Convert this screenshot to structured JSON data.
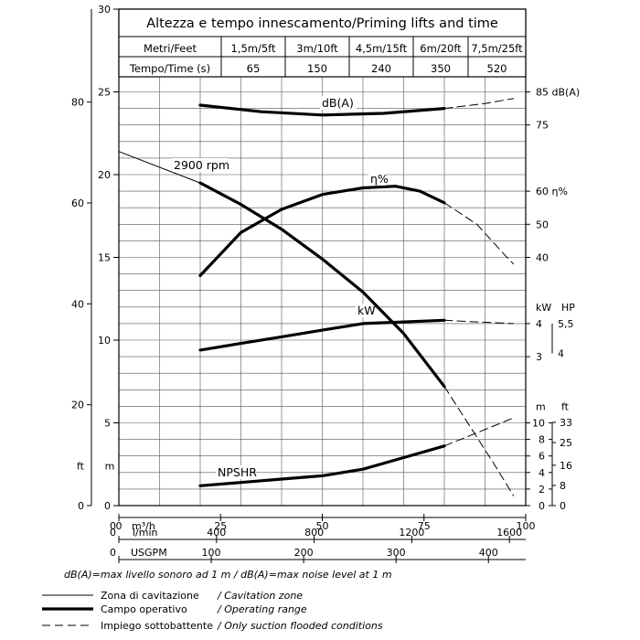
{
  "chart_data": {
    "type": "line",
    "title": "Altezza e tempo innescamento/Priming lifts and time",
    "priming_table": {
      "row1_label": "Metri/Feet",
      "row2_label": "Tempo/Time (s)",
      "lifts": [
        "1,5m/5ft",
        "3m/10ft",
        "4,5m/15ft",
        "6m/20ft",
        "7,5m/25ft"
      ],
      "times": [
        "65",
        "150",
        "240",
        "350",
        "520"
      ]
    },
    "x_axes": {
      "m3h": {
        "label": "m³/h",
        "ticks": [
          0,
          25,
          50,
          75,
          100
        ],
        "range": [
          0,
          100
        ]
      },
      "lmin": {
        "label": "l/min",
        "ticks": [
          0,
          400,
          800,
          1200,
          1600
        ]
      },
      "usgpm": {
        "label": "USGPM",
        "ticks": [
          0,
          100,
          200,
          300,
          400
        ]
      }
    },
    "y_axes": {
      "head_m": {
        "ticks": [
          0,
          5,
          10,
          15,
          20,
          25,
          30
        ],
        "range": [
          0,
          30
        ]
      },
      "head_ft": {
        "ticks": [
          0,
          20,
          40,
          60,
          80
        ]
      },
      "left_units": {
        "ft": "ft",
        "m": "m"
      },
      "dba": {
        "ticks": [
          "85 dB(A)",
          "75"
        ]
      },
      "eff": {
        "ticks": [
          "60 η%",
          "50",
          "40"
        ]
      },
      "kw": {
        "ticks": [
          "4",
          "3"
        ],
        "unit": "kW"
      },
      "hp": {
        "ticks": [
          "5,5",
          "4"
        ],
        "unit": "HP"
      },
      "npshr_m": {
        "ticks": [
          0,
          2,
          4,
          6,
          8,
          10
        ],
        "unit": "m"
      },
      "npshr_ft": {
        "ticks": [
          0,
          8,
          16,
          25,
          33
        ],
        "unit": "ft"
      }
    },
    "labels": {
      "rpm": "2900 rpm",
      "dba": "dB(A)",
      "eta": "η%",
      "kw": "kW",
      "npshr": "NPSHR"
    },
    "series": [
      {
        "name": "2900 rpm",
        "cavitation": [
          [
            0,
            21.4
          ],
          [
            20,
            19.5
          ]
        ],
        "operating": [
          [
            20,
            19.5
          ],
          [
            30,
            18.2
          ],
          [
            40,
            16.7
          ],
          [
            50,
            14.9
          ],
          [
            60,
            12.9
          ],
          [
            70,
            10.4
          ],
          [
            80,
            7.2
          ]
        ],
        "flooded": [
          [
            80,
            7.2
          ],
          [
            86,
            4.9
          ],
          [
            92,
            2.6
          ],
          [
            97,
            0.6
          ]
        ]
      },
      {
        "name": "dB(A)",
        "operating": [
          [
            20,
            24.2
          ],
          [
            35,
            23.8
          ],
          [
            50,
            23.6
          ],
          [
            65,
            23.7
          ],
          [
            80,
            24.0
          ]
        ],
        "flooded": [
          [
            80,
            24.0
          ],
          [
            90,
            24.3
          ],
          [
            97,
            24.6
          ]
        ]
      },
      {
        "name": "η%",
        "operating": [
          [
            20,
            13.9
          ],
          [
            30,
            16.5
          ],
          [
            40,
            17.9
          ],
          [
            50,
            18.8
          ],
          [
            60,
            19.2
          ],
          [
            68,
            19.3
          ],
          [
            74,
            19.0
          ],
          [
            80,
            18.3
          ]
        ],
        "flooded": [
          [
            80,
            18.3
          ],
          [
            88,
            17.0
          ],
          [
            95,
            15.1
          ],
          [
            97,
            14.6
          ]
        ]
      },
      {
        "name": "kW",
        "operating": [
          [
            20,
            9.4
          ],
          [
            30,
            9.8
          ],
          [
            40,
            10.2
          ],
          [
            50,
            10.6
          ],
          [
            60,
            11.0
          ],
          [
            70,
            11.1
          ],
          [
            80,
            11.2
          ]
        ],
        "flooded": [
          [
            80,
            11.2
          ],
          [
            88,
            11.1
          ],
          [
            97,
            11.0
          ]
        ]
      },
      {
        "name": "NPSHR",
        "operating": [
          [
            20,
            1.2
          ],
          [
            30,
            1.4
          ],
          [
            40,
            1.6
          ],
          [
            50,
            1.8
          ],
          [
            60,
            2.2
          ],
          [
            70,
            2.9
          ],
          [
            80,
            3.6
          ]
        ],
        "flooded": [
          [
            80,
            3.6
          ],
          [
            88,
            4.4
          ],
          [
            97,
            5.3
          ]
        ]
      }
    ],
    "grid": true,
    "notes": {
      "dba_note": "dB(A)=max livello sonoro ad 1 m  /  dB(A)=max noise level at 1 m"
    },
    "legend": [
      {
        "style": "thin",
        "it": "Zona di cavitazione",
        "en": "/ Cavitation zone"
      },
      {
        "style": "thick",
        "it": "Campo operativo",
        "en": "/ Operating range"
      },
      {
        "style": "dashed",
        "it": "Impiego sottobattente",
        "en": "/ Only suction flooded conditions"
      }
    ]
  }
}
